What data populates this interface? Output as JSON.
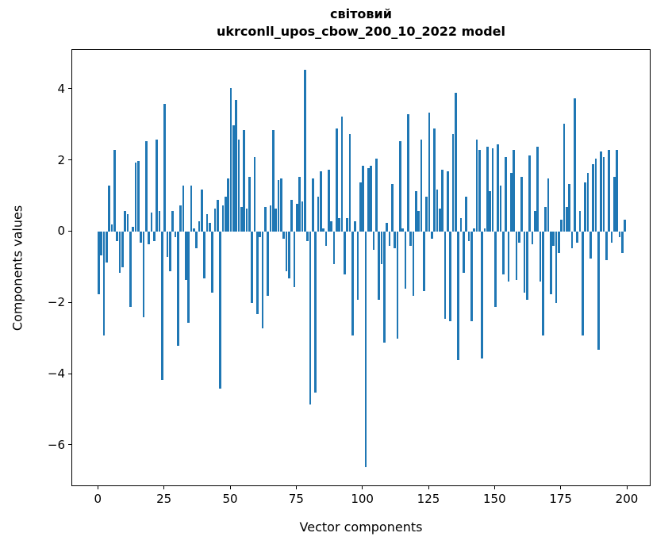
{
  "chart_data": {
    "type": "bar",
    "title": "світовий",
    "subtitle": "ukrconll_upos_cbow_200_10_2022 model",
    "xlabel": "Vector components",
    "ylabel": "Components values",
    "bar_color": "#1f77b4",
    "bar_width": 0.8,
    "grid": false,
    "legend": false,
    "xlim": [
      -10.0,
      209.0
    ],
    "ylim": [
      -7.16,
      5.11
    ],
    "xticks": {
      "values": [
        0,
        25,
        50,
        75,
        100,
        125,
        150,
        175,
        200
      ],
      "labels": [
        "0",
        "25",
        "50",
        "75",
        "100",
        "125",
        "150",
        "175",
        "200"
      ]
    },
    "yticks": {
      "values": [
        4,
        2,
        0,
        -2,
        -4,
        -6
      ],
      "labels": [
        "4",
        "2",
        "0",
        "−2",
        "−4",
        "−6"
      ]
    },
    "x_start": 0,
    "values": [
      -1.75,
      -0.65,
      -2.9,
      -0.85,
      1.3,
      0.2,
      2.3,
      -0.25,
      -1.15,
      -1.0,
      0.6,
      0.5,
      -2.1,
      0.15,
      1.95,
      2.0,
      -0.3,
      -2.4,
      2.55,
      -0.35,
      0.55,
      -0.25,
      2.6,
      0.6,
      -4.15,
      3.6,
      -0.7,
      -1.1,
      0.6,
      -0.15,
      -3.2,
      0.75,
      1.3,
      -1.35,
      -2.55,
      1.3,
      0.1,
      -0.45,
      0.3,
      1.2,
      -1.3,
      0.5,
      0.25,
      -1.7,
      0.65,
      0.9,
      -4.4,
      0.75,
      1.0,
      1.5,
      4.05,
      3.0,
      3.7,
      2.6,
      0.7,
      2.85,
      0.65,
      1.55,
      -2.0,
      2.1,
      -2.3,
      -0.15,
      -2.7,
      0.7,
      -1.8,
      0.75,
      2.85,
      0.65,
      1.45,
      1.5,
      -0.2,
      -1.1,
      -1.3,
      0.9,
      -1.55,
      0.8,
      1.55,
      0.85,
      4.55,
      -0.25,
      -4.85,
      1.5,
      -4.5,
      1.0,
      1.7,
      0.1,
      -0.4,
      1.75,
      0.3,
      -0.9,
      2.9,
      0.4,
      3.25,
      -1.2,
      0.4,
      2.75,
      -2.9,
      0.3,
      -1.9,
      1.4,
      1.85,
      -6.6,
      1.8,
      1.85,
      -0.5,
      2.05,
      -1.9,
      -0.9,
      -3.1,
      0.25,
      -0.4,
      1.35,
      -0.45,
      -3.0,
      2.55,
      0.1,
      -1.6,
      3.3,
      -0.4,
      -1.8,
      1.15,
      0.6,
      2.6,
      -1.65,
      1.0,
      3.35,
      -0.2,
      2.9,
      1.2,
      0.65,
      1.75,
      -2.45,
      1.7,
      -2.5,
      2.75,
      3.9,
      -3.6,
      0.4,
      -1.15,
      1.0,
      -0.25,
      -2.5,
      0.1,
      2.6,
      2.3,
      -3.55,
      0.1,
      2.4,
      1.15,
      2.35,
      -2.1,
      2.45,
      1.3,
      -1.2,
      2.1,
      -1.4,
      1.65,
      2.3,
      -1.35,
      -0.3,
      1.55,
      -1.7,
      -1.9,
      2.15,
      -0.35,
      0.6,
      2.4,
      -1.4,
      -2.9,
      0.7,
      1.5,
      -1.75,
      -0.4,
      -2.0,
      -0.6,
      0.35,
      3.05,
      0.7,
      1.35,
      -0.45,
      3.75,
      -0.3,
      0.6,
      -2.9,
      1.4,
      1.65,
      -0.75,
      1.9,
      2.05,
      -3.3,
      2.25,
      2.1,
      -0.8,
      2.3,
      -0.3,
      1.55,
      2.3,
      -0.15,
      -0.6,
      0.35
    ]
  }
}
